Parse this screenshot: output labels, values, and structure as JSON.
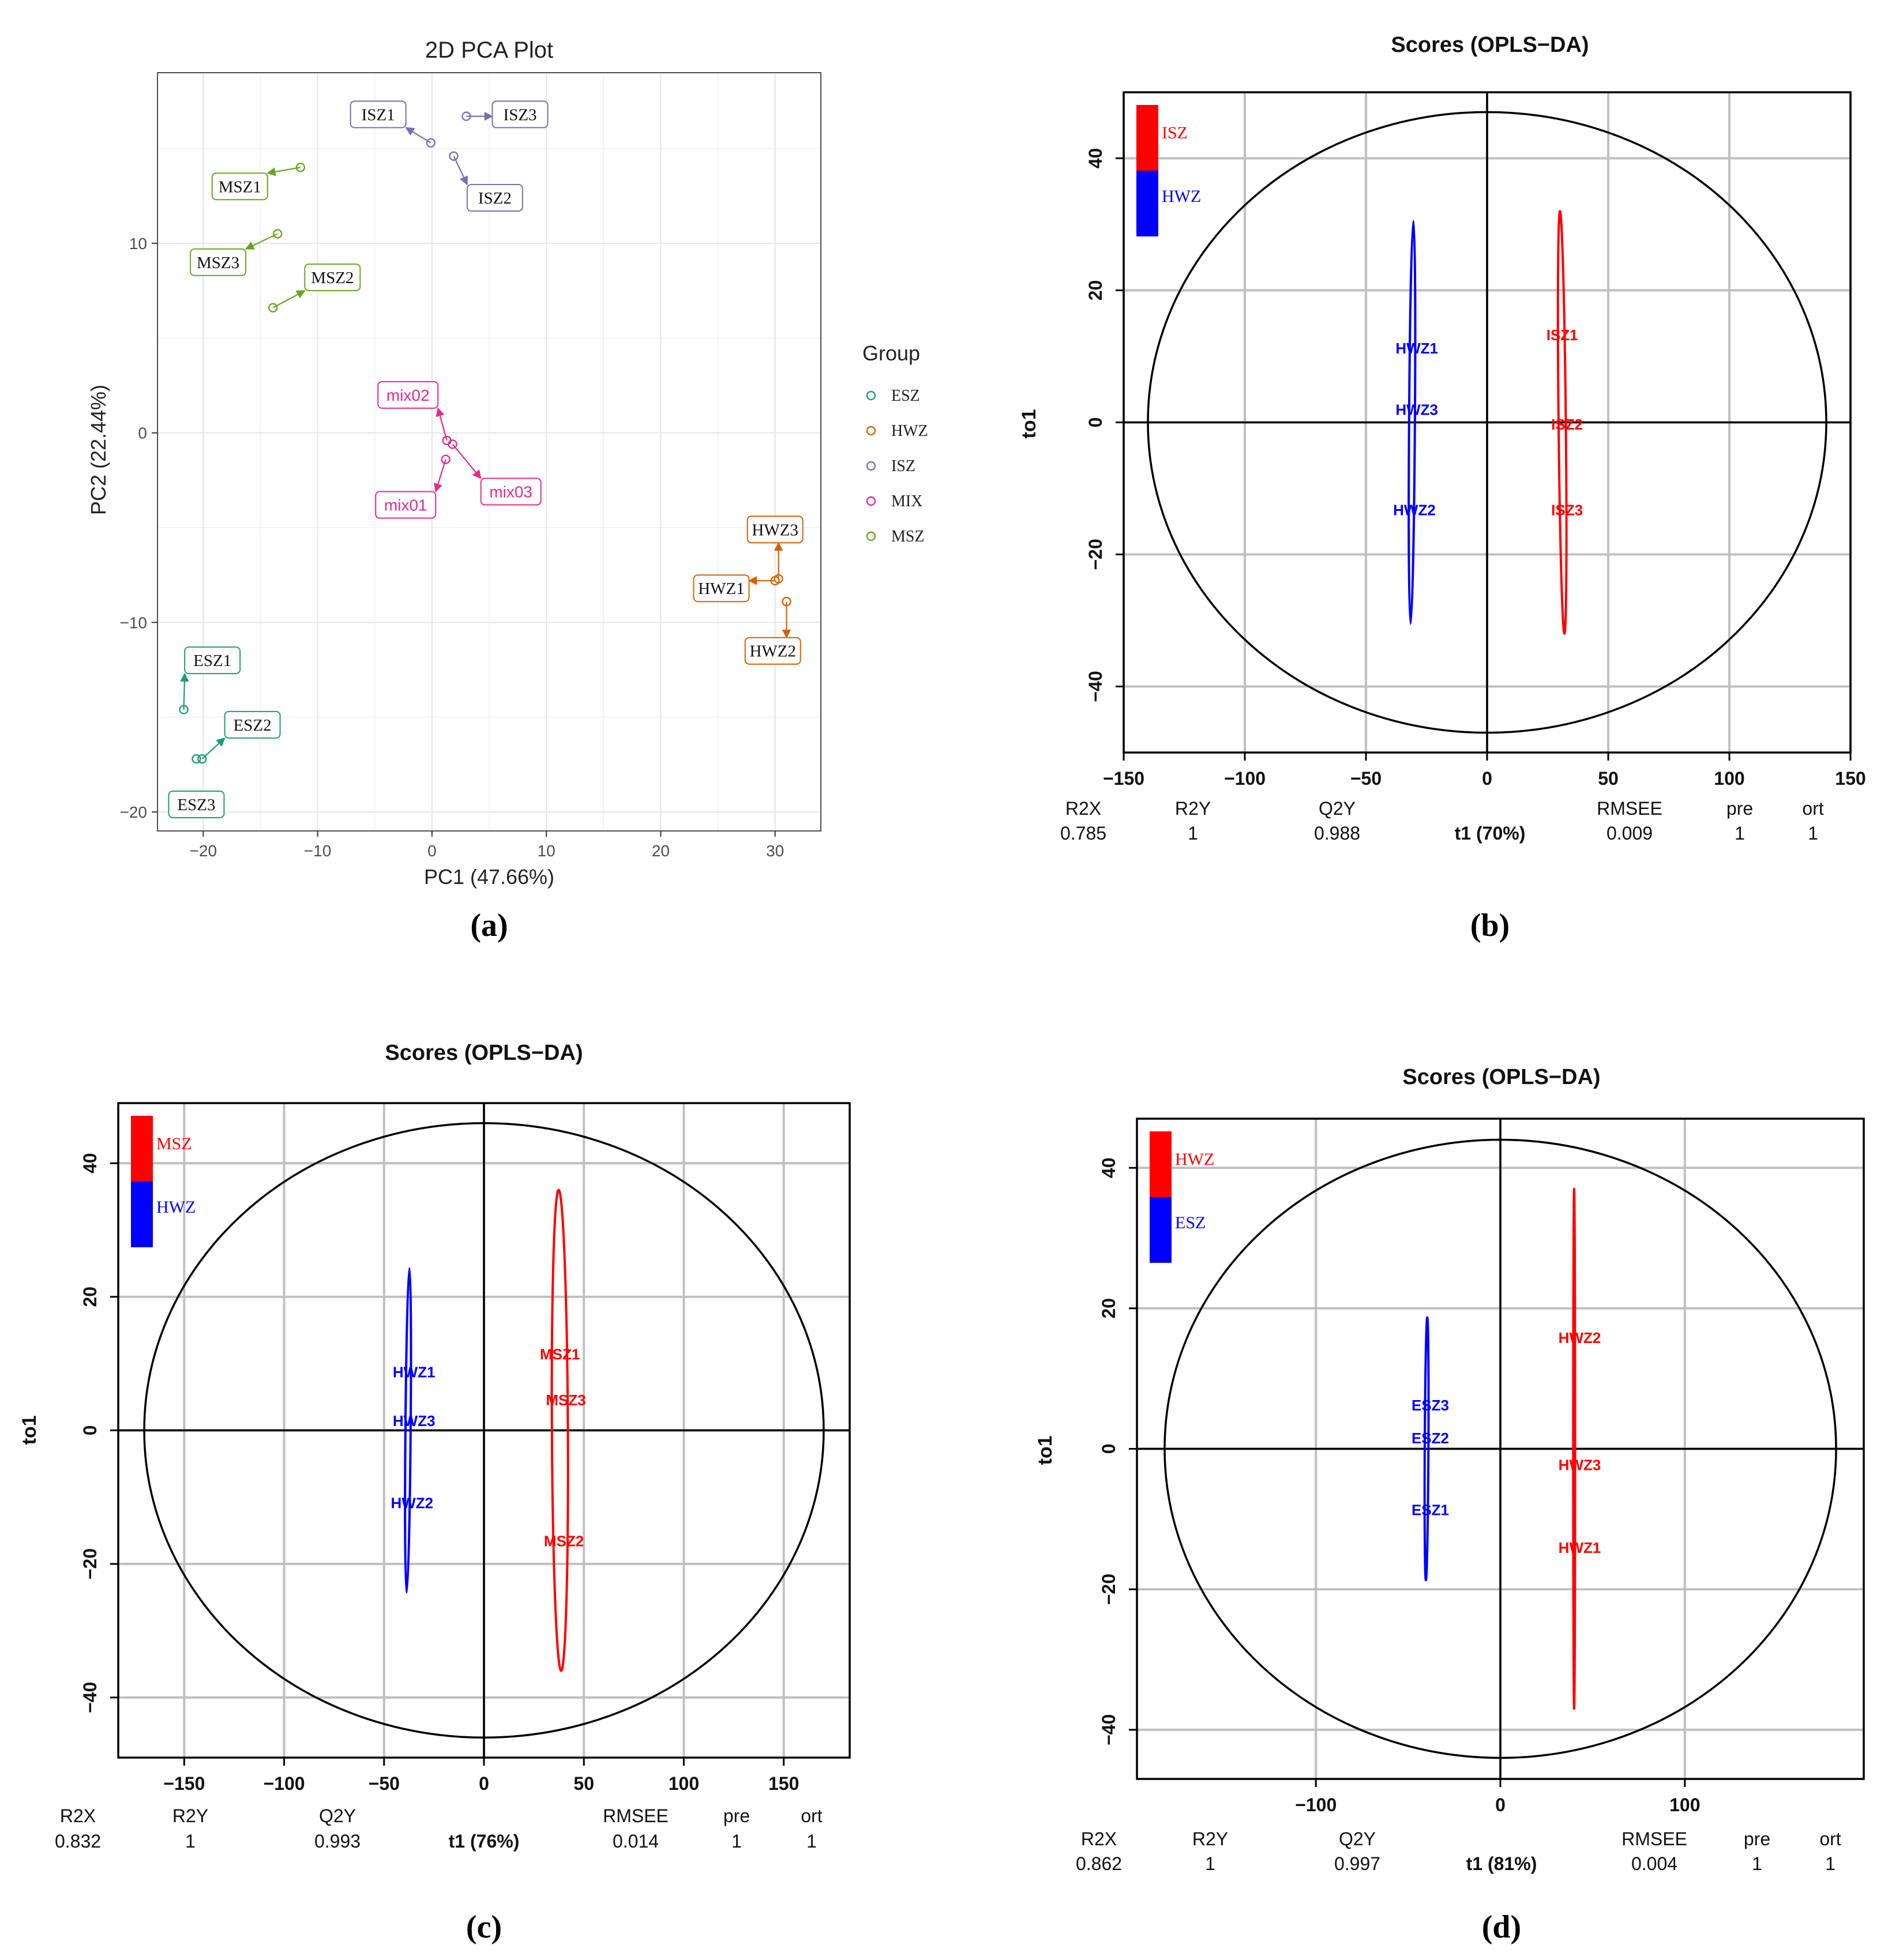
{
  "panel_captions": [
    "(a)",
    "(b)",
    "(c)",
    "(d)"
  ],
  "chart_data": [
    {
      "type": "scatter",
      "id": "a",
      "title": "2D PCA Plot",
      "xlabel": "PC1 (47.66%)",
      "ylabel": "PC2 (22.44%)",
      "xlim": [
        -24,
        34
      ],
      "ylim": [
        -21,
        19
      ],
      "xticks": [
        -20,
        -10,
        0,
        10,
        20,
        30
      ],
      "yticks": [
        -20,
        -10,
        0,
        10
      ],
      "tick_labels_x": [
        "−20",
        "−10",
        "0",
        "10",
        "20",
        "30"
      ],
      "tick_labels_y": [
        "−20",
        "−10",
        "0",
        "10"
      ],
      "grid": true,
      "legend": {
        "title": "Group",
        "position": "right",
        "entries": [
          {
            "name": "ESZ",
            "color": "#1b9e77"
          },
          {
            "name": "HWZ",
            "color": "#d95f02"
          },
          {
            "name": "ISZ",
            "color": "#7570b3"
          },
          {
            "name": "MIX",
            "color": "#e7298a"
          },
          {
            "name": "MSZ",
            "color": "#66a61e"
          }
        ]
      },
      "points": [
        {
          "label": "ESZ1",
          "group": "ESZ",
          "x": -21.7,
          "y": -14.6,
          "lx": -19.2,
          "ly": -12.0,
          "serif": true
        },
        {
          "label": "ESZ2",
          "group": "ESZ",
          "x": -20.1,
          "y": -17.2,
          "lx": -15.7,
          "ly": -15.4,
          "serif": true
        },
        {
          "label": "ESZ3",
          "group": "ESZ",
          "x": -20.6,
          "y": -17.2,
          "lx": -20.6,
          "ly": -19.6,
          "serif": true,
          "noarrow": true
        },
        {
          "label": "HWZ1",
          "group": "HWZ",
          "x": 30.0,
          "y": -7.8,
          "lx": 25.3,
          "ly": -8.2,
          "serif": true
        },
        {
          "label": "HWZ2",
          "group": "HWZ",
          "x": 31.0,
          "y": -8.9,
          "lx": 29.8,
          "ly": -11.5,
          "serif": true
        },
        {
          "label": "HWZ3",
          "group": "HWZ",
          "x": 30.3,
          "y": -7.7,
          "lx": 30.0,
          "ly": -5.1,
          "serif": true
        },
        {
          "label": "ISZ1",
          "group": "ISZ",
          "x": -0.1,
          "y": 15.3,
          "lx": -4.7,
          "ly": 16.8,
          "serif": true
        },
        {
          "label": "ISZ2",
          "group": "ISZ",
          "x": 1.9,
          "y": 14.6,
          "lx": 5.5,
          "ly": 12.4,
          "serif": true
        },
        {
          "label": "ISZ3",
          "group": "ISZ",
          "x": 3.0,
          "y": 16.7,
          "lx": 7.7,
          "ly": 16.8,
          "serif": true
        },
        {
          "label": "mix01",
          "group": "MIX",
          "x": 1.2,
          "y": -1.4,
          "lx": -2.3,
          "ly": -3.8,
          "serif": false
        },
        {
          "label": "mix02",
          "group": "MIX",
          "x": 1.3,
          "y": -0.4,
          "lx": -2.1,
          "ly": 2.0,
          "serif": false
        },
        {
          "label": "mix03",
          "group": "MIX",
          "x": 1.8,
          "y": -0.6,
          "lx": 6.9,
          "ly": -3.1,
          "serif": false
        },
        {
          "label": "MSZ1",
          "group": "MSZ",
          "x": -11.5,
          "y": 14.0,
          "lx": -16.8,
          "ly": 13.0,
          "serif": true
        },
        {
          "label": "MSZ2",
          "group": "MSZ",
          "x": -13.9,
          "y": 6.6,
          "lx": -8.7,
          "ly": 8.2,
          "serif": true
        },
        {
          "label": "MSZ3",
          "group": "MSZ",
          "x": -13.5,
          "y": 10.5,
          "lx": -18.7,
          "ly": 9.0,
          "serif": true
        }
      ]
    },
    {
      "type": "scatter",
      "id": "b",
      "title": "Scores (OPLS−DA)",
      "xlabel": "t1 (70%)",
      "ylabel": "to1",
      "xlim": [
        -150,
        150
      ],
      "ylim": [
        -50,
        50
      ],
      "xticks": [
        -150,
        -100,
        -50,
        0,
        50,
        100,
        150
      ],
      "yticks": [
        -40,
        -20,
        0,
        20,
        40
      ],
      "tick_labels_x": [
        "−150",
        "−100",
        "−50",
        "0",
        "50",
        "100",
        "150"
      ],
      "tick_labels_y": [
        "−40",
        "−20",
        "0",
        "20",
        "40"
      ],
      "ellipse_radii": [
        140,
        47
      ],
      "legend": [
        {
          "name": "ISZ",
          "color": "#ff0000"
        },
        {
          "name": "HWZ",
          "color": "#0000ff"
        }
      ],
      "groups": [
        {
          "name": "HWZ",
          "color": "#0000ff",
          "center": [
            -31,
            0
          ],
          "rx": 1.2,
          "ry": 30.5,
          "tilt": 0.04
        },
        {
          "name": "ISZ",
          "color": "#ff0000",
          "center": [
            31,
            0
          ],
          "rx": 1.5,
          "ry": 32,
          "tilt": -0.06
        }
      ],
      "points": [
        {
          "label": "HWZ1",
          "x": -29,
          "y": 11.3,
          "color": "#0000ff"
        },
        {
          "label": "HWZ3",
          "x": -29,
          "y": 2.0,
          "color": "#0000ff"
        },
        {
          "label": "HWZ2",
          "x": -30,
          "y": -13.2,
          "color": "#0000ff"
        },
        {
          "label": "ISZ1",
          "x": 31,
          "y": 13.3,
          "color": "#ff0000"
        },
        {
          "label": "ISZ2",
          "x": 33,
          "y": -0.2,
          "color": "#ff0000"
        },
        {
          "label": "ISZ3",
          "x": 33,
          "y": -13.2,
          "color": "#ff0000"
        }
      ],
      "stats": {
        "headers": [
          "R2X",
          "R2Y",
          "Q2Y",
          "RMSEE",
          "pre",
          "ort"
        ],
        "values": [
          "0.785",
          "1",
          "0.988",
          "0.009",
          "1",
          "1"
        ]
      }
    },
    {
      "type": "scatter",
      "id": "c",
      "title": "Scores (OPLS−DA)",
      "xlabel": "t1 (76%)",
      "ylabel": "to1",
      "xlim": [
        -183,
        183
      ],
      "ylim": [
        -49,
        49
      ],
      "xticks": [
        -150,
        -100,
        -50,
        0,
        50,
        100,
        150
      ],
      "yticks": [
        -40,
        -20,
        0,
        20,
        40
      ],
      "tick_labels_x": [
        "−150",
        "−100",
        "−50",
        "0",
        "50",
        "100",
        "150"
      ],
      "tick_labels_y": [
        "−40",
        "−20",
        "0",
        "20",
        "40"
      ],
      "ellipse_radii": [
        170,
        46
      ],
      "legend": [
        {
          "name": "MSZ",
          "color": "#ff0000"
        },
        {
          "name": "HWZ",
          "color": "#0000ff"
        }
      ],
      "groups": [
        {
          "name": "HWZ",
          "color": "#0000ff",
          "center": [
            -38,
            0
          ],
          "rx": 1.3,
          "ry": 24.3,
          "tilt": 0.05
        },
        {
          "name": "MSZ",
          "color": "#ff0000",
          "center": [
            38,
            0
          ],
          "rx": 4.0,
          "ry": 36,
          "tilt": -0.03
        }
      ],
      "points": [
        {
          "label": "HWZ1",
          "x": -35,
          "y": 8.8,
          "color": "#0000ff"
        },
        {
          "label": "HWZ3",
          "x": -35,
          "y": 1.5,
          "color": "#0000ff"
        },
        {
          "label": "HWZ2",
          "x": -36,
          "y": -10.8,
          "color": "#0000ff"
        },
        {
          "label": "MSZ1",
          "x": 38,
          "y": 11.5,
          "color": "#ff0000"
        },
        {
          "label": "MSZ3",
          "x": 41,
          "y": 4.6,
          "color": "#ff0000"
        },
        {
          "label": "MSZ2",
          "x": 40,
          "y": -16.5,
          "color": "#ff0000"
        }
      ],
      "stats": {
        "headers": [
          "R2X",
          "R2Y",
          "Q2Y",
          "RMSEE",
          "pre",
          "ort"
        ],
        "values": [
          "0.832",
          "1",
          "0.993",
          "0.014",
          "1",
          "1"
        ]
      }
    },
    {
      "type": "scatter",
      "id": "d",
      "title": "Scores (OPLS−DA)",
      "xlabel": "t1 (81%)",
      "ylabel": "to1",
      "xlim": [
        -197,
        197
      ],
      "ylim": [
        -47,
        47
      ],
      "xticks": [
        -100,
        0,
        100
      ],
      "yticks": [
        -40,
        -20,
        0,
        20,
        40
      ],
      "tick_labels_x": [
        "−100",
        "0",
        "100"
      ],
      "tick_labels_y": [
        "−40",
        "−20",
        "0",
        "20",
        "40"
      ],
      "ellipse_radii": [
        182,
        44
      ],
      "legend": [
        {
          "name": "HWZ",
          "color": "#ff0000"
        },
        {
          "name": "ESZ",
          "color": "#0000ff"
        }
      ],
      "groups": [
        {
          "name": "ESZ",
          "color": "#0000ff",
          "center": [
            -40,
            0
          ],
          "rx": 1.0,
          "ry": 18.7,
          "tilt": 0.03
        },
        {
          "name": "HWZ",
          "color": "#ff0000",
          "center": [
            40,
            0
          ],
          "rx": 0.5,
          "ry": 37,
          "tilt": 0
        }
      ],
      "points": [
        {
          "label": "ESZ3",
          "x": -38,
          "y": 6.3,
          "color": "#0000ff"
        },
        {
          "label": "ESZ2",
          "x": -38,
          "y": 1.6,
          "color": "#0000ff"
        },
        {
          "label": "ESZ1",
          "x": -38,
          "y": -8.6,
          "color": "#0000ff"
        },
        {
          "label": "HWZ2",
          "x": 43,
          "y": 15.9,
          "color": "#ff0000"
        },
        {
          "label": "HWZ3",
          "x": 43,
          "y": -2.2,
          "color": "#ff0000"
        },
        {
          "label": "HWZ1",
          "x": 43,
          "y": -14.0,
          "color": "#ff0000"
        }
      ],
      "stats": {
        "headers": [
          "R2X",
          "R2Y",
          "Q2Y",
          "RMSEE",
          "pre",
          "ort"
        ],
        "values": [
          "0.862",
          "1",
          "0.997",
          "0.004",
          "1",
          "1"
        ]
      }
    }
  ]
}
